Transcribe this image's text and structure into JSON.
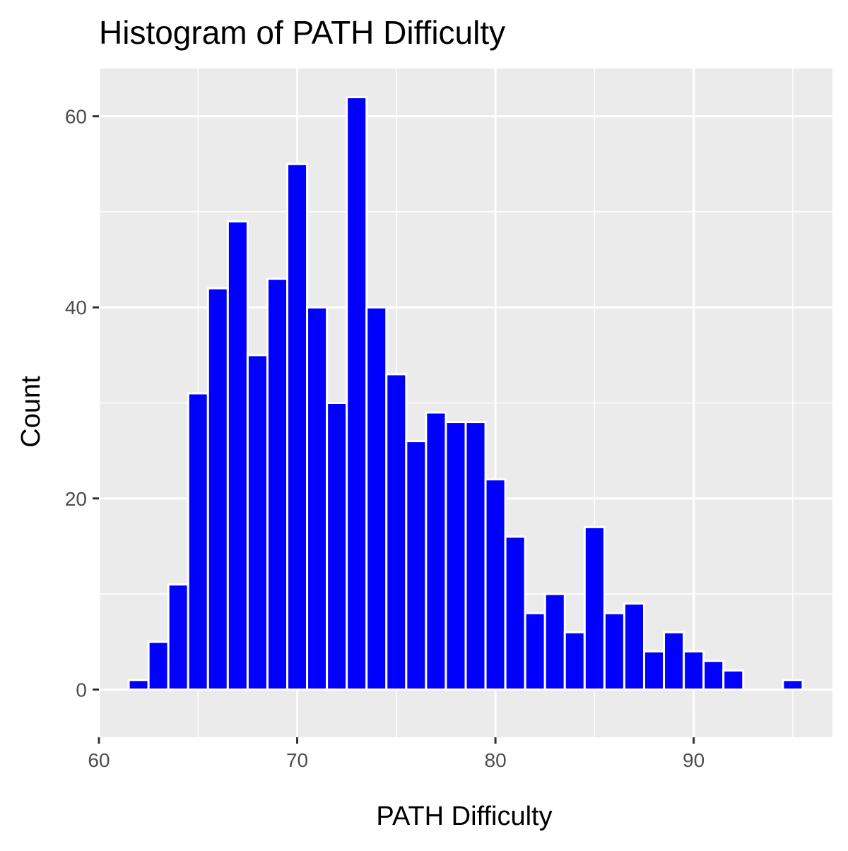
{
  "chart_data": {
    "type": "bar",
    "title": "Histogram of PATH Difficulty",
    "xlabel": "PATH Difficulty",
    "ylabel": "Count",
    "xlim": [
      60,
      97
    ],
    "ylim": [
      -5,
      65
    ],
    "xticks": [
      60,
      70,
      80,
      90
    ],
    "xtick_labels": [
      "60",
      "70",
      "80",
      "90"
    ],
    "yticks": [
      0,
      20,
      40,
      60
    ],
    "ytick_labels": [
      "0",
      "20",
      "40",
      "60"
    ],
    "bin_width": 1,
    "bins": [
      {
        "x": 62,
        "count": 1
      },
      {
        "x": 63,
        "count": 5
      },
      {
        "x": 64,
        "count": 11
      },
      {
        "x": 65,
        "count": 31
      },
      {
        "x": 66,
        "count": 42
      },
      {
        "x": 67,
        "count": 49
      },
      {
        "x": 68,
        "count": 35
      },
      {
        "x": 69,
        "count": 43
      },
      {
        "x": 70,
        "count": 55
      },
      {
        "x": 71,
        "count": 40
      },
      {
        "x": 72,
        "count": 30
      },
      {
        "x": 73,
        "count": 62
      },
      {
        "x": 74,
        "count": 40
      },
      {
        "x": 75,
        "count": 33
      },
      {
        "x": 76,
        "count": 26
      },
      {
        "x": 77,
        "count": 29
      },
      {
        "x": 78,
        "count": 28
      },
      {
        "x": 79,
        "count": 28
      },
      {
        "x": 80,
        "count": 22
      },
      {
        "x": 81,
        "count": 16
      },
      {
        "x": 82,
        "count": 8
      },
      {
        "x": 83,
        "count": 10
      },
      {
        "x": 84,
        "count": 6
      },
      {
        "x": 85,
        "count": 17
      },
      {
        "x": 86,
        "count": 8
      },
      {
        "x": 87,
        "count": 9
      },
      {
        "x": 88,
        "count": 4
      },
      {
        "x": 89,
        "count": 6
      },
      {
        "x": 90,
        "count": 4
      },
      {
        "x": 91,
        "count": 3
      },
      {
        "x": 92,
        "count": 2
      },
      {
        "x": 95,
        "count": 1
      }
    ],
    "grid": true,
    "bar_color": "#0000ff",
    "bar_outline": "#ffffff",
    "panel_background": "#ebebeb",
    "grid_color": "#ffffff"
  }
}
